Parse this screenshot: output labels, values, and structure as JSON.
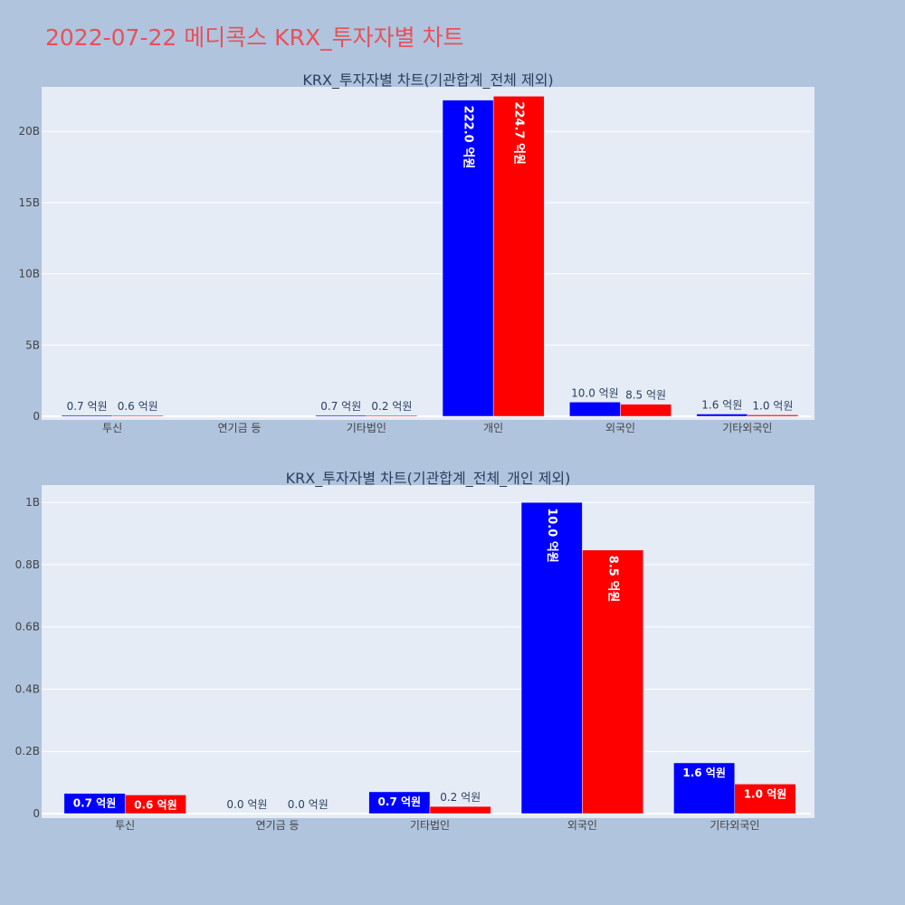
{
  "title": "2022-07-22 메디콕스 KRX_투자자별 차트",
  "colors": {
    "buy": "#0000ff",
    "sell": "#ff0000",
    "plot_bg": "#e5ecf6",
    "page_bg": "#b0c4de",
    "grid": "#ffffff"
  },
  "chart_data": [
    {
      "type": "bar",
      "title": "KRX_투자자별 차트(기관합계_전체 제외)",
      "categories": [
        "투신",
        "연기금 등",
        "기타법인",
        "개인",
        "외국인",
        "기타외국인"
      ],
      "series": [
        {
          "values": [
            0.07,
            0,
            0.07,
            22.2,
            1.0,
            0.16
          ],
          "labels": [
            "0.7 억원",
            "",
            "0.7 억원",
            "222.0 억원",
            "10.0 억원",
            "1.6 억원"
          ]
        },
        {
          "values": [
            0.06,
            0,
            0.02,
            22.47,
            0.85,
            0.1
          ],
          "labels": [
            "0.6 억원",
            "",
            "0.2 억원",
            "224.7 억원",
            "8.5 억원",
            "1.0 억원"
          ]
        }
      ],
      "value_unit": "B",
      "yticks": [
        0,
        5,
        10,
        15,
        20
      ],
      "ytick_labels": [
        "0",
        "5B",
        "10B",
        "15B",
        "20B"
      ],
      "ylim": [
        0,
        23.0
      ],
      "grid": true
    },
    {
      "type": "bar",
      "title": "KRX_투자자별 차트(기관합계_전체_개인 제외)",
      "categories": [
        "투신",
        "연기금 등",
        "기타법인",
        "외국인",
        "기타외국인"
      ],
      "series": [
        {
          "values": [
            0.065,
            0,
            0.07,
            1.0,
            0.163
          ],
          "labels": [
            "0.7 억원",
            "0.0 억원",
            "0.7 억원",
            "10.0 억원",
            "1.6 억원"
          ]
        },
        {
          "values": [
            0.06,
            0,
            0.023,
            0.847,
            0.095
          ],
          "labels": [
            "0.6 억원",
            "0.0 억원",
            "0.2 억원",
            "8.5 억원",
            "1.0 억원"
          ]
        }
      ],
      "value_unit": "B",
      "yticks": [
        0,
        0.2,
        0.4,
        0.6,
        0.8,
        1.0
      ],
      "ytick_labels": [
        "0",
        "0.2B",
        "0.4B",
        "0.6B",
        "0.8B",
        "1B"
      ],
      "ylim": [
        0,
        1.05
      ],
      "grid": true
    }
  ]
}
